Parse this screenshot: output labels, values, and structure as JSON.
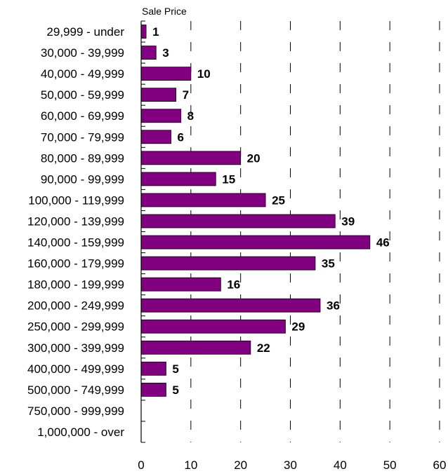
{
  "chart_data": {
    "type": "bar",
    "orientation": "horizontal",
    "title": "Sale Price",
    "xlabel": "",
    "ylabel": "",
    "categories": [
      "29,999 - under",
      "30,000 - 39,999",
      "40,000 - 49,999",
      "50,000 - 59,999",
      "60,000 - 69,999",
      "70,000 - 79,999",
      "80,000 - 89,999",
      "90,000 - 99,999",
      "100,000 - 119,999",
      "120,000 - 139,999",
      "140,000 - 159,999",
      "160,000 - 179,999",
      "180,000 - 199,999",
      "200,000 - 249,999",
      "250,000 - 299,999",
      "300,000 - 399,999",
      "400,000 - 499,999",
      "500,000 - 749,999",
      "750,000 - 999,999",
      "1,000,000 - over"
    ],
    "values": [
      1,
      3,
      10,
      7,
      8,
      6,
      20,
      15,
      25,
      39,
      46,
      35,
      16,
      36,
      29,
      22,
      5,
      5,
      null,
      null
    ],
    "data_labels": [
      "1",
      "3",
      "10",
      "7",
      "8",
      "6",
      "20",
      "15",
      "25",
      "39",
      "46",
      "35",
      "16",
      "36",
      "29",
      "22",
      "5",
      "5",
      "",
      ""
    ],
    "xlim": [
      0,
      60
    ],
    "xticks": [
      0,
      10,
      20,
      30,
      40,
      50,
      60
    ],
    "xtick_labels": [
      "0",
      "10",
      "20",
      "30",
      "40",
      "50",
      "60"
    ],
    "grid": "vertical dashed",
    "legend": "none",
    "colors": {
      "bar": "#800080",
      "bar_border": "#000000",
      "grid": "#000000"
    }
  }
}
